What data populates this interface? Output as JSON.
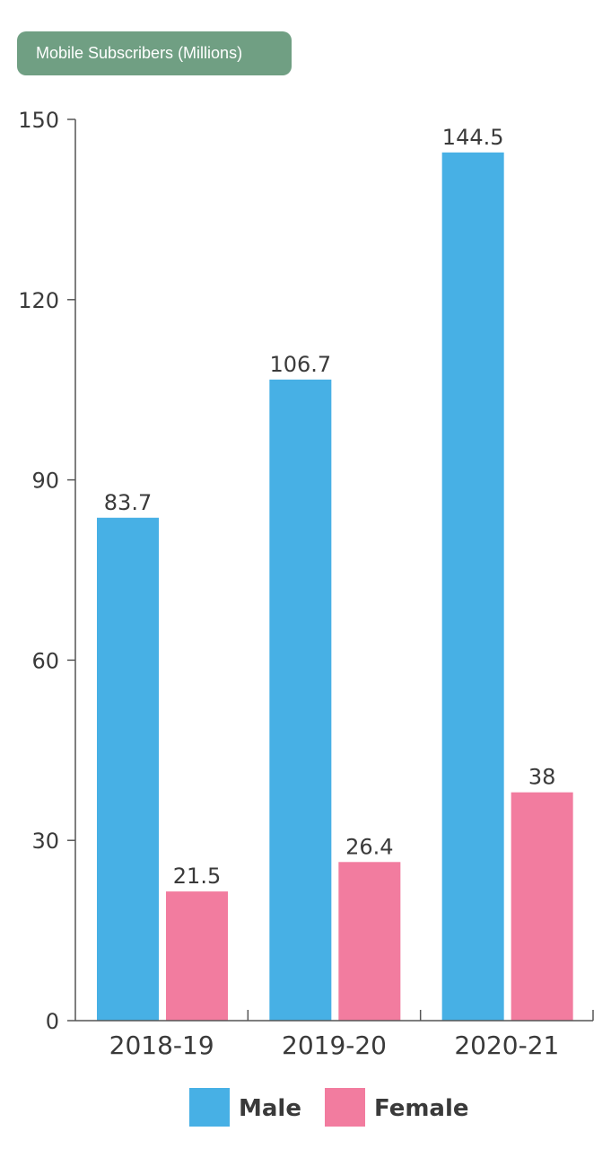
{
  "chart_data": {
    "type": "bar",
    "title": "Mobile Subscribers (Millions)",
    "categories": [
      "2018-19",
      "2019-20",
      "2020-21"
    ],
    "series": [
      {
        "name": "Male",
        "values": [
          83.7,
          106.7,
          144.5
        ],
        "color": "#47b0e5"
      },
      {
        "name": "Female",
        "values": [
          21.5,
          26.4,
          38
        ],
        "color": "#f27c9f"
      }
    ],
    "data_labels": [
      [
        "83.7",
        "106.7",
        "144.5"
      ],
      [
        "21.5",
        "26.4",
        "38"
      ]
    ],
    "yticks": [
      0,
      30,
      60,
      90,
      120,
      150
    ],
    "ylim": [
      0,
      150
    ],
    "xlabel": "",
    "ylabel": "",
    "grid": false,
    "legend_position": "bottom"
  }
}
